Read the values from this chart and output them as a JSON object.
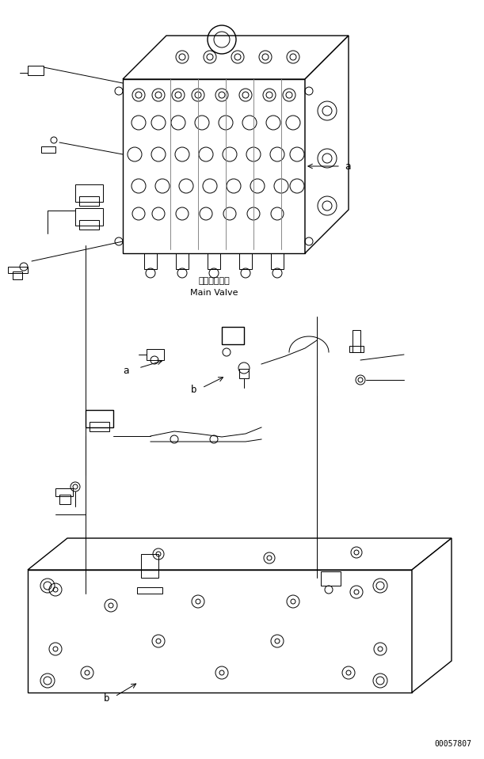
{
  "background_color": "#ffffff",
  "line_color": "#000000",
  "fig_width": 6.11,
  "fig_height": 9.59,
  "dpi": 100,
  "part_number": "00057807",
  "label_a_text": "a",
  "label_b_text": "b",
  "main_valve_japanese": "メインバルブ",
  "main_valve_english": "Main Valve",
  "font_size_label": 9,
  "font_size_partnum": 7,
  "font_size_valve": 8
}
